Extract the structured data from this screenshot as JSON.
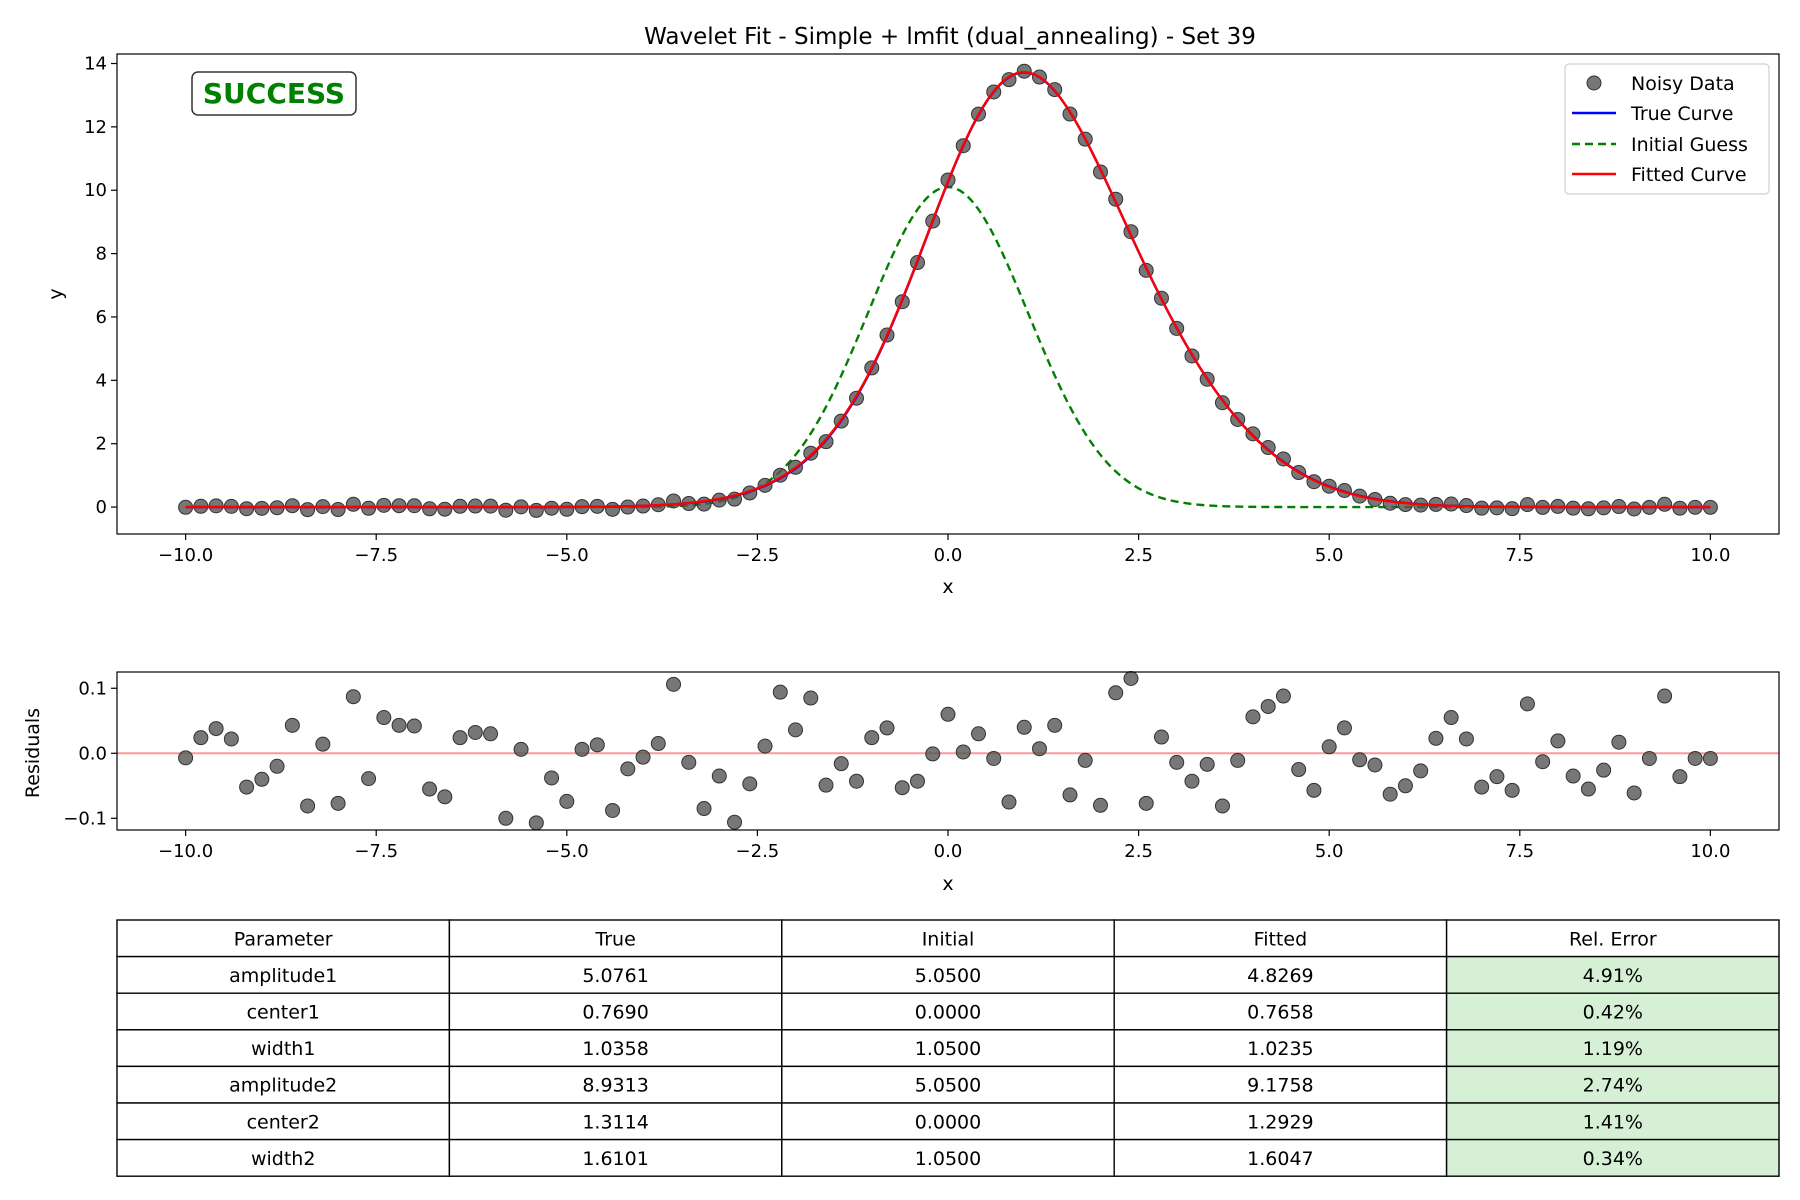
{
  "chart_data": [
    {
      "type": "line",
      "title": "Wavelet Fit - Simple + lmfit (dual_annealing) - Set 39",
      "xlabel": "x",
      "ylabel": "y",
      "xlim": [
        -10.9,
        10.9
      ],
      "ylim": [
        -0.85,
        14.3
      ],
      "xticks": [
        -10.0,
        -7.5,
        -5.0,
        -2.5,
        0.0,
        2.5,
        5.0,
        7.5,
        10.0
      ],
      "xtick_labels": [
        "−10.0",
        "−7.5",
        "−5.0",
        "−2.5",
        "0.0",
        "2.5",
        "5.0",
        "7.5",
        "10.0"
      ],
      "yticks": [
        0,
        2,
        4,
        6,
        8,
        10,
        12,
        14
      ],
      "ytick_labels": [
        "0",
        "2",
        "4",
        "6",
        "8",
        "10",
        "12",
        "14"
      ],
      "grid": false,
      "legend_position": "top-right",
      "status_text": "SUCCESS",
      "status_color": "#008000",
      "x_range": [
        -10,
        10
      ],
      "n_points": 101,
      "series": [
        {
          "name": "Noisy Data",
          "kind": "scatter",
          "color": "#555555"
        },
        {
          "name": "True Curve",
          "kind": "line",
          "color": "#0000ff",
          "model": "sum_of_gaussians",
          "params": {
            "amplitude1": 5.0761,
            "center1": 0.769,
            "width1": 1.0358,
            "amplitude2": 8.9313,
            "center2": 1.3114,
            "width2": 1.6101
          }
        },
        {
          "name": "Initial Guess",
          "kind": "line",
          "color": "#008000",
          "dash": "dashed",
          "model": "sum_of_gaussians",
          "params": {
            "amplitude1": 5.05,
            "center1": 0.0,
            "width1": 1.05,
            "amplitude2": 5.05,
            "center2": 0.0,
            "width2": 1.05
          }
        },
        {
          "name": "Fitted Curve",
          "kind": "line",
          "color": "#ff0000",
          "model": "sum_of_gaussians",
          "params": {
            "amplitude1": 4.8269,
            "center1": 0.7658,
            "width1": 1.0235,
            "amplitude2": 9.1758,
            "center2": 1.2929,
            "width2": 1.6047
          }
        }
      ]
    },
    {
      "type": "scatter",
      "xlabel": "x",
      "ylabel": "Residuals",
      "xlim": [
        -10.9,
        10.9
      ],
      "ylim": [
        -0.118,
        0.125
      ],
      "xticks": [
        -10.0,
        -7.5,
        -5.0,
        -2.5,
        0.0,
        2.5,
        5.0,
        7.5,
        10.0
      ],
      "xtick_labels": [
        "−10.0",
        "−7.5",
        "−5.0",
        "−2.5",
        "0.0",
        "2.5",
        "5.0",
        "7.5",
        "10.0"
      ],
      "yticks": [
        0.1,
        0.0,
        -0.1
      ],
      "ytick_labels": [
        "0.1",
        "0.0",
        "−0.1"
      ],
      "zero_line_color": "#ff9999",
      "point_color": "#555555",
      "x": [
        -10.0,
        -9.8,
        -9.6,
        -9.4,
        -9.2,
        -9.0,
        -8.8,
        -8.6,
        -8.4,
        -8.2,
        -8.0,
        -7.8,
        -7.6,
        -7.4,
        -7.2,
        -7.0,
        -6.8,
        -6.6,
        -6.4,
        -6.2,
        -6.0,
        -5.8,
        -5.6,
        -5.4,
        -5.2,
        -5.0,
        -4.8,
        -4.6,
        -4.4,
        -4.2,
        -4.0,
        -3.8,
        -3.6,
        -3.4,
        -3.2,
        -3.0,
        -2.8,
        -2.6,
        -2.4,
        -2.2,
        -2.0,
        -1.8,
        -1.6,
        -1.4,
        -1.2,
        -1.0,
        -0.8,
        -0.6,
        -0.4,
        -0.2,
        0.0,
        0.2,
        0.4,
        0.6,
        0.8,
        1.0,
        1.2,
        1.4,
        1.6,
        1.8,
        2.0,
        2.2,
        2.4,
        2.6,
        2.8,
        3.0,
        3.2,
        3.4,
        3.6,
        3.8,
        4.0,
        4.2,
        4.4,
        4.6,
        4.8,
        5.0,
        5.2,
        5.4,
        5.6,
        5.8,
        6.0,
        6.2,
        6.4,
        6.6,
        6.8,
        7.0,
        7.2,
        7.4,
        7.6,
        7.8,
        8.0,
        8.2,
        8.4,
        8.6,
        8.8,
        9.0,
        9.2,
        9.4,
        9.6,
        9.8,
        10.0
      ],
      "y": [
        -0.007,
        0.024,
        0.038,
        0.022,
        -0.052,
        -0.04,
        -0.02,
        0.043,
        -0.081,
        0.014,
        -0.077,
        0.087,
        -0.039,
        0.055,
        0.043,
        0.042,
        -0.055,
        -0.067,
        0.024,
        0.032,
        0.03,
        -0.1,
        0.006,
        -0.107,
        -0.038,
        -0.074,
        0.006,
        0.013,
        -0.088,
        -0.024,
        -0.006,
        0.015,
        0.106,
        -0.014,
        -0.085,
        -0.035,
        -0.106,
        -0.047,
        0.011,
        0.094,
        0.036,
        0.085,
        -0.049,
        -0.016,
        -0.043,
        0.024,
        0.039,
        -0.053,
        -0.043,
        -0.001,
        0.06,
        0.002,
        0.03,
        -0.008,
        -0.075,
        0.04,
        0.007,
        0.043,
        -0.064,
        -0.011,
        -0.08,
        0.093,
        0.115,
        -0.077,
        0.025,
        -0.014,
        -0.043,
        -0.017,
        -0.081,
        -0.011,
        0.056,
        0.072,
        0.088,
        -0.025,
        -0.057,
        0.01,
        0.039,
        -0.01,
        -0.018,
        -0.063,
        -0.05,
        -0.027,
        0.023,
        0.055,
        0.022,
        -0.052,
        -0.036,
        -0.057,
        0.076,
        -0.013,
        0.019,
        -0.035,
        -0.055,
        -0.026,
        0.017,
        -0.061,
        -0.008,
        0.088,
        -0.036,
        -0.008,
        -0.008
      ]
    },
    {
      "type": "table",
      "columns": [
        "Parameter",
        "True",
        "Initial",
        "Fitted",
        "Rel. Error"
      ],
      "rows": [
        [
          "amplitude1",
          "5.0761",
          "5.0500",
          "4.8269",
          "4.91%"
        ],
        [
          "center1",
          "0.7690",
          "0.0000",
          "0.7658",
          "0.42%"
        ],
        [
          "width1",
          "1.0358",
          "1.0500",
          "1.0235",
          "1.19%"
        ],
        [
          "amplitude2",
          "8.9313",
          "5.0500",
          "9.1758",
          "2.74%"
        ],
        [
          "center2",
          "1.3114",
          "0.0000",
          "1.2929",
          "1.41%"
        ],
        [
          "width2",
          "1.6101",
          "1.0500",
          "1.6047",
          "0.34%"
        ]
      ],
      "error_cell_color": "#d6f0d6"
    }
  ]
}
